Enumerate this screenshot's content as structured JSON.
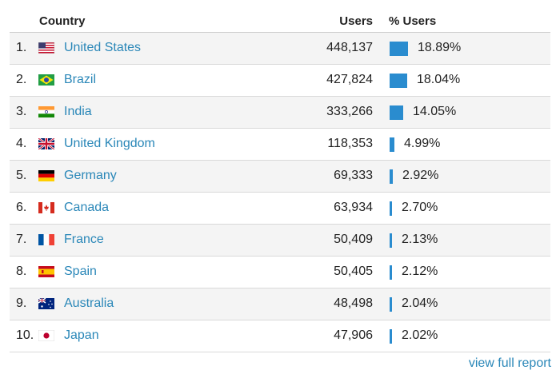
{
  "table": {
    "headers": {
      "country": "Country",
      "users": "Users",
      "pct_users": "% Users"
    },
    "rows": [
      {
        "rank": "1.",
        "flag": "us-flag-icon",
        "country": "United States",
        "users": "448,137",
        "pct": "18.89%",
        "pct_value": 18.89
      },
      {
        "rank": "2.",
        "flag": "brazil-flag-icon",
        "country": "Brazil",
        "users": "427,824",
        "pct": "18.04%",
        "pct_value": 18.04
      },
      {
        "rank": "3.",
        "flag": "india-flag-icon",
        "country": "India",
        "users": "333,266",
        "pct": "14.05%",
        "pct_value": 14.05
      },
      {
        "rank": "4.",
        "flag": "uk-flag-icon",
        "country": "United Kingdom",
        "users": "118,353",
        "pct": "4.99%",
        "pct_value": 4.99
      },
      {
        "rank": "5.",
        "flag": "germany-flag-icon",
        "country": "Germany",
        "users": "69,333",
        "pct": "2.92%",
        "pct_value": 2.92
      },
      {
        "rank": "6.",
        "flag": "canada-flag-icon",
        "country": "Canada",
        "users": "63,934",
        "pct": "2.70%",
        "pct_value": 2.7
      },
      {
        "rank": "7.",
        "flag": "france-flag-icon",
        "country": "France",
        "users": "50,409",
        "pct": "2.13%",
        "pct_value": 2.13
      },
      {
        "rank": "8.",
        "flag": "spain-flag-icon",
        "country": "Spain",
        "users": "50,405",
        "pct": "2.12%",
        "pct_value": 2.12
      },
      {
        "rank": "9.",
        "flag": "australia-flag-icon",
        "country": "Australia",
        "users": "48,498",
        "pct": "2.04%",
        "pct_value": 2.04
      },
      {
        "rank": "10.",
        "flag": "japan-flag-icon",
        "country": "Japan",
        "users": "47,906",
        "pct": "2.02%",
        "pct_value": 2.02
      }
    ]
  },
  "footer": {
    "link_label": "view full report"
  },
  "colors": {
    "link": "#2a87b8",
    "bar": "#2a8ccf",
    "stripe": "#f4f4f4"
  }
}
